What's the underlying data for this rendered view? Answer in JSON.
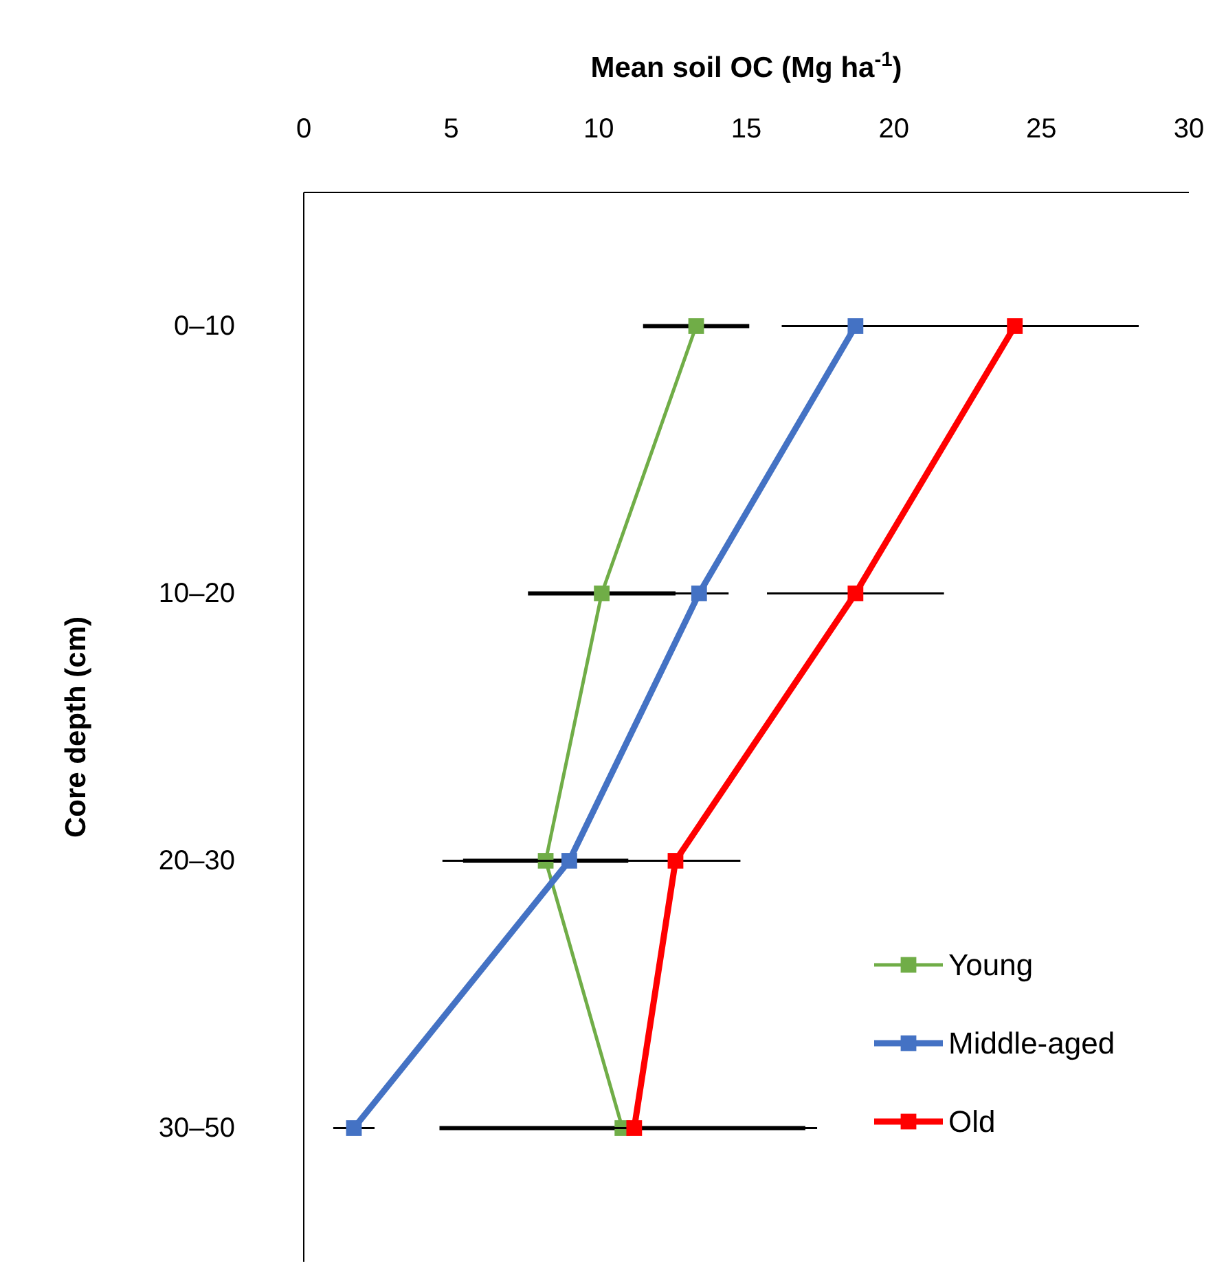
{
  "chart_data": {
    "type": "line",
    "orientation": "horizontal",
    "xlabel": "Mean soil OC (Mg ha$^{-1}$)",
    "ylabel": "Core depth (cm)",
    "categories": [
      "0–10",
      "10–20",
      "20–30",
      "30–50"
    ],
    "xlim": [
      0,
      30
    ],
    "xticks": [
      0,
      5,
      10,
      15,
      20,
      25,
      30
    ],
    "marker": "square",
    "line_style": "solid",
    "legend": "bottom right",
    "series": [
      {
        "name": "Young",
        "color": "#70ad47",
        "values": [
          13.3,
          10.1,
          8.2,
          10.8
        ],
        "errors": [
          1.8,
          2.5,
          2.8,
          6.2
        ]
      },
      {
        "name": "Middle-aged",
        "color": "#4472c4",
        "values": [
          18.7,
          13.4,
          9.0,
          1.7
        ],
        "errors": [
          2.5,
          1.0,
          4.3,
          0.7
        ]
      },
      {
        "name": "Old",
        "color": "#ff0000",
        "values": [
          24.1,
          18.7,
          12.6,
          11.2
        ],
        "errors": [
          4.2,
          3.0,
          2.2,
          6.2
        ]
      }
    ]
  }
}
